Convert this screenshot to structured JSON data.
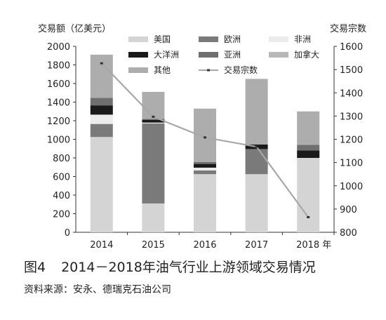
{
  "chart_data": {
    "type": "bar",
    "stacked": true,
    "ylabel_left": "交易额（亿美元）",
    "ylabel_right": "交易宗数",
    "categories": [
      "2014",
      "2015",
      "2016",
      "2017",
      "2018 年"
    ],
    "ylim_left": [
      0,
      2000
    ],
    "yticks_left": [
      "0",
      "200",
      "400",
      "600",
      "800",
      "1000",
      "1200",
      "1400",
      "1600",
      "1800",
      "2000"
    ],
    "ylim_right": [
      800,
      1600
    ],
    "yticks_right": [
      "800",
      "900",
      "1000",
      "1100",
      "1200",
      "1300",
      "1400",
      "1500",
      "1600"
    ],
    "series": [
      {
        "name": "美国",
        "color": "#d4d4d4",
        "values": [
          1025,
          310,
          625,
          625,
          800
        ]
      },
      {
        "name": "欧洲",
        "color": "#7a7a7a",
        "values": [
          140,
          860,
          40,
          270,
          0
        ]
      },
      {
        "name": "非洲",
        "color": "#ececec",
        "values": [
          100,
          10,
          30,
          0,
          0
        ]
      },
      {
        "name": "大洋洲",
        "color": "#1a1a1a",
        "values": [
          100,
          30,
          40,
          50,
          80
        ]
      },
      {
        "name": "亚洲",
        "color": "#6f6f6f",
        "values": [
          80,
          10,
          20,
          0,
          60
        ]
      },
      {
        "name": "加拿大",
        "color": "#b8b8b8",
        "values": [
          0,
          0,
          0,
          0,
          0
        ]
      },
      {
        "name": "其他",
        "color": "#adadad",
        "values": [
          465,
          290,
          575,
          705,
          360
        ]
      }
    ],
    "line": {
      "name": "交易宗数",
      "color": "#a8a8a8",
      "values": [
        1527,
        1297,
        1208,
        1168,
        865
      ]
    },
    "legend_position": "top",
    "grid": false
  },
  "caption": {
    "figure_number": "图4",
    "title": "2014－2018年油气行业上游领域交易情况"
  },
  "source": "资料来源：安永、德瑞克石油公司"
}
